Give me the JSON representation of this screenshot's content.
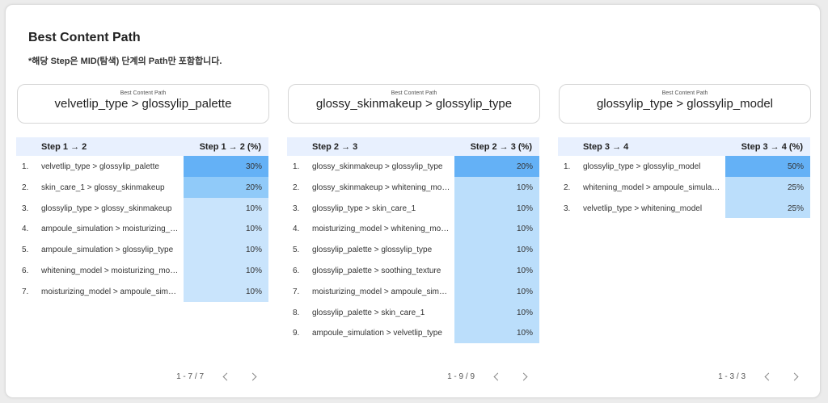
{
  "header": {
    "title": "Best Content Path",
    "subtitle": "*해당 Step은 MID(탐색) 단계의 Path만 포함합니다."
  },
  "panels": [
    {
      "caption": "Best Content Path",
      "best_path": "velvetlip_type > glossylip_palette",
      "col_step": "Step 1 → 2",
      "col_pct": "Step 1 → 2 (%)",
      "rows": [
        {
          "idx": "1.",
          "label": "velvetlip_type > glossylip_palette",
          "pct": "30%"
        },
        {
          "idx": "2.",
          "label": "skin_care_1 > glossy_skinmakeup",
          "pct": "20%"
        },
        {
          "idx": "3.",
          "label": "glossylip_type > glossy_skinmakeup",
          "pct": "10%"
        },
        {
          "idx": "4.",
          "label": "ampoule_simulation > moisturizing_model",
          "pct": "10%"
        },
        {
          "idx": "5.",
          "label": "ampoule_simulation > glossylip_type",
          "pct": "10%"
        },
        {
          "idx": "6.",
          "label": "whitening_model > moisturizing_model",
          "pct": "10%"
        },
        {
          "idx": "7.",
          "label": "moisturizing_model > ampoule_simulation",
          "pct": "10%"
        }
      ],
      "page_count": "1 - 7 / 7"
    },
    {
      "caption": "Best Content Path",
      "best_path": "glossy_skinmakeup > glossylip_type",
      "col_step": "Step 2 → 3",
      "col_pct": "Step 2 → 3 (%)",
      "rows": [
        {
          "idx": "1.",
          "label": "glossy_skinmakeup > glossylip_type",
          "pct": "20%"
        },
        {
          "idx": "2.",
          "label": "glossy_skinmakeup > whitening_model",
          "pct": "10%"
        },
        {
          "idx": "3.",
          "label": "glossylip_type > skin_care_1",
          "pct": "10%"
        },
        {
          "idx": "4.",
          "label": "moisturizing_model > whitening_model",
          "pct": "10%"
        },
        {
          "idx": "5.",
          "label": "glossylip_palette > glossylip_type",
          "pct": "10%"
        },
        {
          "idx": "6.",
          "label": "glossylip_palette > soothing_texture",
          "pct": "10%"
        },
        {
          "idx": "7.",
          "label": "moisturizing_model > ampoule_simulation",
          "pct": "10%"
        },
        {
          "idx": "8.",
          "label": "glossylip_palette > skin_care_1",
          "pct": "10%"
        },
        {
          "idx": "9.",
          "label": "ampoule_simulation > velvetlip_type",
          "pct": "10%"
        }
      ],
      "page_count": "1 - 9 / 9"
    },
    {
      "caption": "Best Content Path",
      "best_path": "glossylip_type > glossylip_model",
      "col_step": "Step 3 → 4",
      "col_pct": "Step 3 → 4 (%)",
      "rows": [
        {
          "idx": "1.",
          "label": "glossylip_type > glossylip_model",
          "pct": "50%"
        },
        {
          "idx": "2.",
          "label": "whitening_model > ampoule_simulation",
          "pct": "25%"
        },
        {
          "idx": "3.",
          "label": "velvetlip_type > whitening_model",
          "pct": "25%"
        }
      ],
      "page_count": "1 - 3 / 3"
    }
  ],
  "icons": {
    "prev": "chevron-left-icon",
    "next": "chevron-right-icon"
  },
  "colors": {
    "bar_high": "#64b1f6",
    "bar_mid": "#90caf9",
    "bar_low": "#bbdefb",
    "header_bg": "#e8f0fe"
  }
}
